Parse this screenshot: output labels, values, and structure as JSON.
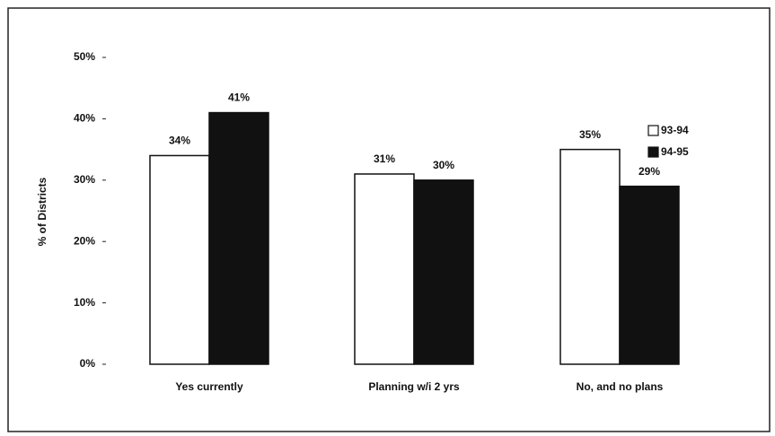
{
  "chart_data": {
    "type": "bar",
    "y_label": "% of Districts",
    "categories": [
      "Yes currently",
      "Planning w/i 2 yrs",
      "No, and no plans"
    ],
    "series": [
      {
        "name": "93-94",
        "color": "#ffffff",
        "values": [
          34,
          31,
          35
        ],
        "value_labels": [
          "34%",
          "31%",
          "35%"
        ]
      },
      {
        "name": "94-95",
        "color": "#111111",
        "values": [
          41,
          30,
          29
        ],
        "value_labels": [
          "41%",
          "30%",
          "29%"
        ]
      }
    ],
    "ylim": [
      0,
      50
    ],
    "yticks": [
      {
        "value": 0,
        "label": "0%"
      },
      {
        "value": 10,
        "label": "10%"
      },
      {
        "value": 20,
        "label": "20%"
      },
      {
        "value": 30,
        "label": "30%"
      },
      {
        "value": 40,
        "label": "40%"
      },
      {
        "value": 50,
        "label": "50%"
      }
    ],
    "legend": "upper right"
  }
}
